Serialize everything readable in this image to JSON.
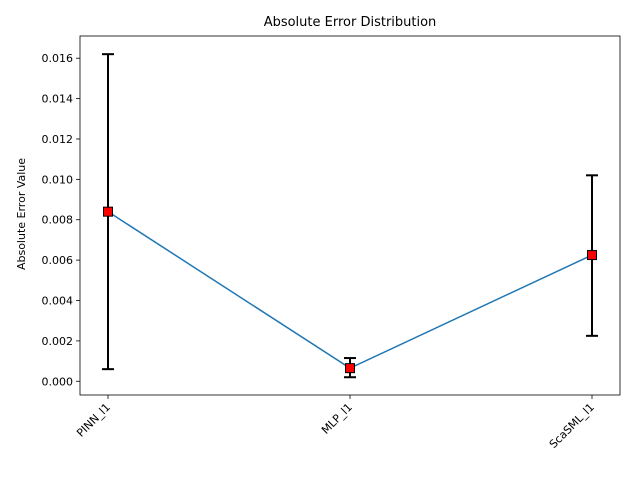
{
  "chart_data": {
    "type": "line",
    "title": "Absolute Error Distribution",
    "xlabel": "",
    "ylabel": "Absolute Error Value",
    "categories": [
      "PINN_l1",
      "MLP_l1",
      "ScaSML_l1"
    ],
    "series": [
      {
        "values": [
          0.0084,
          0.00065,
          0.00625
        ],
        "error_low": [
          0.0006,
          0.0002,
          0.00225
        ],
        "error_high": [
          0.0162,
          0.00115,
          0.0102
        ],
        "line_color": "#1f77b4",
        "marker_color": "#ff0000",
        "marker": "square"
      }
    ],
    "ylim": [
      -0.00068,
      0.0171
    ],
    "yticks": [
      0.0,
      0.002,
      0.004,
      0.006,
      0.008,
      0.01,
      0.012,
      0.014,
      0.016
    ],
    "ytick_labels": [
      "0.000",
      "0.002",
      "0.004",
      "0.006",
      "0.008",
      "0.010",
      "0.012",
      "0.014",
      "0.016"
    ],
    "grid": false,
    "legend": "none",
    "xtick_rotation": 45
  }
}
